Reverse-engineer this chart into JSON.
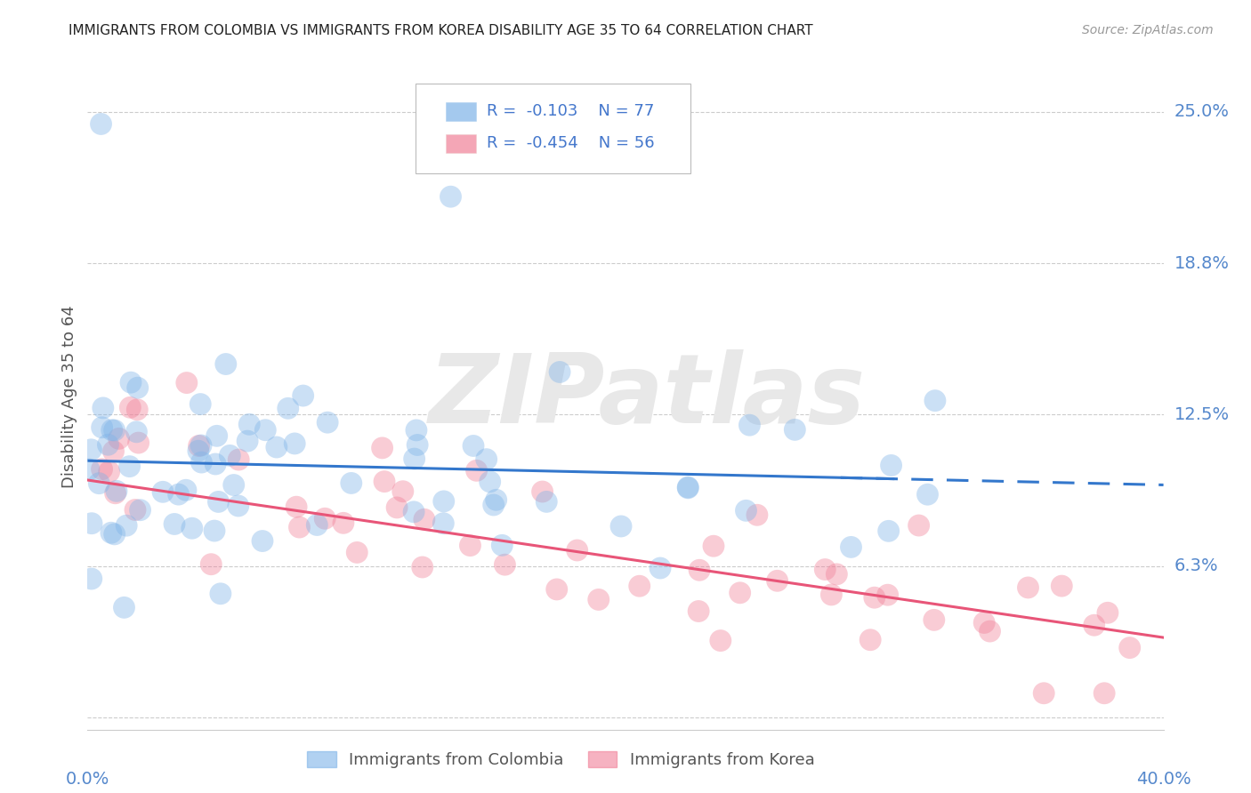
{
  "title": "IMMIGRANTS FROM COLOMBIA VS IMMIGRANTS FROM KOREA DISABILITY AGE 35 TO 64 CORRELATION CHART",
  "source": "Source: ZipAtlas.com",
  "ylabel": "Disability Age 35 to 64",
  "xlim": [
    0.0,
    0.4
  ],
  "ylim": [
    -0.005,
    0.27
  ],
  "watermark": "ZIPatlas",
  "colombia_color": "#7EB3E8",
  "korea_color": "#F08098",
  "colombia_R": "-0.103",
  "colombia_N": "77",
  "korea_R": "-0.454",
  "korea_N": "56",
  "background_color": "#ffffff",
  "grid_color": "#cccccc",
  "title_color": "#222222",
  "legend_text_color": "#4477CC",
  "ytick_label_color": "#5588CC",
  "xtick_label_color": "#5588CC"
}
